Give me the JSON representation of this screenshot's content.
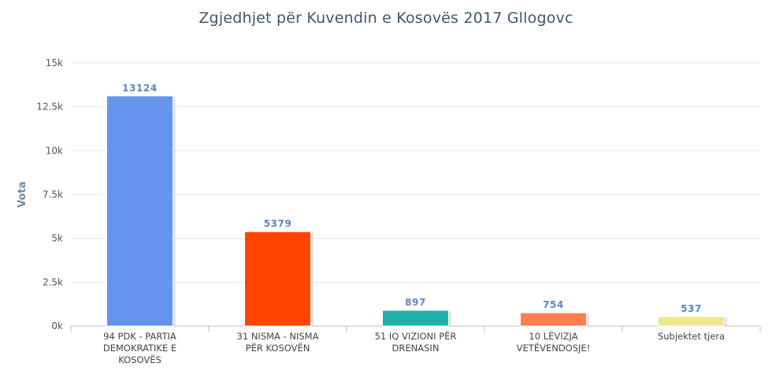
{
  "chart_data": {
    "type": "bar",
    "title": "Zgjedhjet për Kuvendin e Kosovës 2017 Gllogovc",
    "xlabel": "",
    "ylabel": "Vota",
    "ylim": [
      0,
      15000
    ],
    "yticks": [
      "0k",
      "2.5k",
      "5k",
      "7.5k",
      "10k",
      "12.5k",
      "15k"
    ],
    "ytick_values": [
      0,
      2500,
      5000,
      7500,
      10000,
      12500,
      15000
    ],
    "grid": true,
    "legend": "none",
    "categories": [
      "94 PDK - PARTIA DEMOKRATIKE E KOSOVËS",
      "31 NISMA - NISMA PËR KOSOVËN",
      "51 IQ VIZIONI PËR DRENASIN",
      "10 LËVIZJA VETËVENDOSJE!",
      "Subjektet tjera"
    ],
    "category_lines": [
      [
        "94 PDK - PARTIA",
        "DEMOKRATIKE E",
        "KOSOVËS"
      ],
      [
        "31 NISMA - NISMA",
        "PËR KOSOVËN"
      ],
      [
        "51 IQ VIZIONI PËR",
        "DRENASIN"
      ],
      [
        "10 LËVIZJA",
        "VETËVENDOSJE!"
      ],
      [
        "Subjektet tjera"
      ]
    ],
    "values": [
      13124,
      5379,
      897,
      754,
      537
    ],
    "colors": [
      "#6495ed",
      "#ff4500",
      "#20b2aa",
      "#ff7f50",
      "#f0e68c"
    ]
  }
}
